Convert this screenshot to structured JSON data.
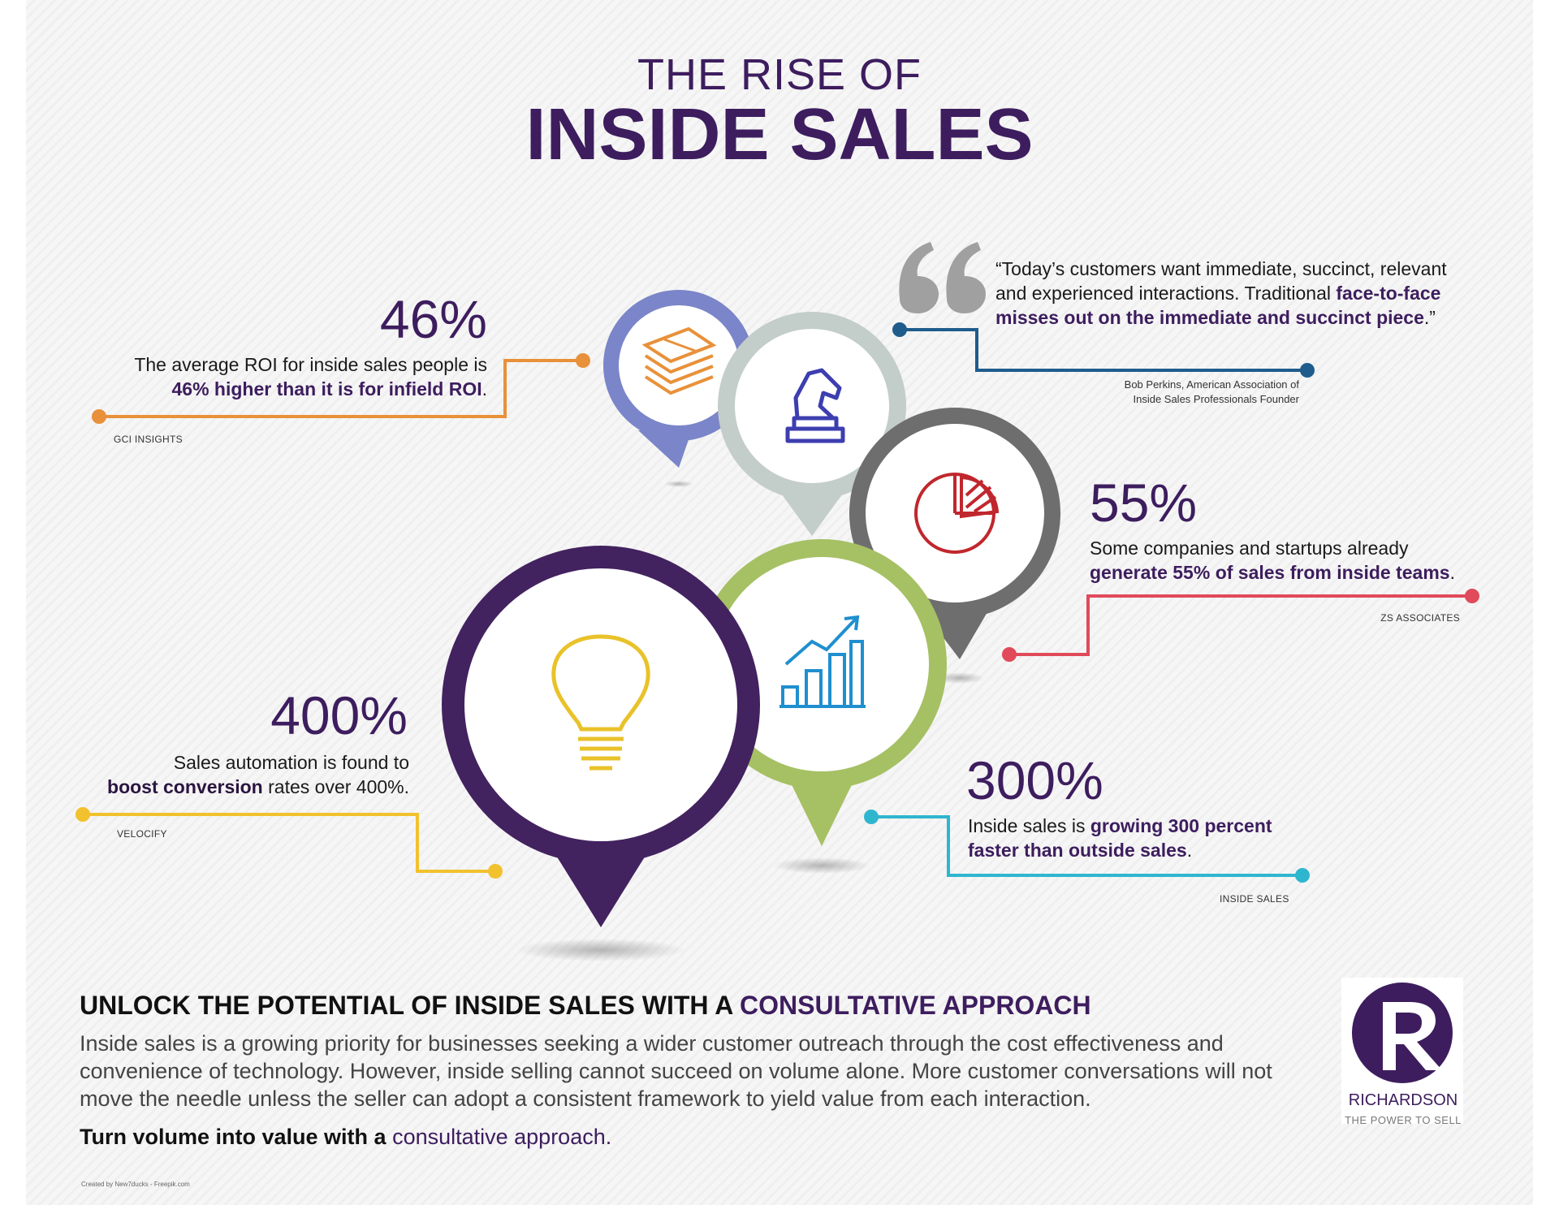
{
  "title": {
    "line1": "THE RISE OF",
    "line2": "INSIDE SALES"
  },
  "stats": [
    {
      "id": "roi",
      "number": "46%",
      "text_plain": "The average ROI for inside sales people is",
      "text_bold": "46% higher than it is for infield ROI",
      "text_end": ".",
      "source": "GCI INSIGHTS",
      "color": "#e8913a"
    },
    {
      "id": "companies",
      "number": "55%",
      "text_plain": "Some companies and startups already",
      "text_bold": "generate 55% of sales from inside teams",
      "text_end": ".",
      "source": "ZS ASSOCIATES",
      "color": "#e04a5a"
    },
    {
      "id": "automation",
      "number": "400%",
      "text_plain_1": "Sales automation is found to",
      "text_bold": "boost conversion",
      "text_plain_2": "rates over 400%.",
      "source": "VELOCIFY",
      "color": "#f2c12e"
    },
    {
      "id": "growth",
      "number": "300%",
      "text_plain": "Inside sales is",
      "text_bold": "growing 300 percent faster than outside sales",
      "text_end": ".",
      "source": "INSIDE SALES",
      "color": "#2fb6cf"
    }
  ],
  "quote": {
    "text_plain": "“Today’s customers want immediate, succinct, relevant and experienced interactions. Traditional",
    "text_bold": "face-to-face misses out on the immediate and succinct piece",
    "text_end": ".”",
    "attribution_line1": "Bob Perkins, American Association of",
    "attribution_line2": "Inside Sales Professionals Founder",
    "color": "#1f5c8c"
  },
  "bottom": {
    "heading_plain": "UNLOCK THE POTENTIAL OF INSIDE SALES WITH A",
    "heading_highlight": "CONSULTATIVE APPROACH",
    "body": "Inside sales is a growing priority for businesses seeking a wider customer outreach through the cost effectiveness and convenience of technology. However, inside selling cannot succeed on volume alone. More customer conversations will not move the needle unless the seller can adopt a consistent framework to yield value from each interaction.",
    "cta_plain": "Turn volume into value with a",
    "cta_highlight": "consultative approach."
  },
  "logo": {
    "letter": "R",
    "name": "RICHARDSON",
    "tagline": "THE POWER TO SELL"
  },
  "credit": "Created by New7ducks - Freepik.com",
  "icons": [
    "money-stack-icon",
    "chess-knight-icon",
    "pie-chart-icon",
    "growth-chart-icon",
    "lightbulb-icon",
    "quote-mark-icon"
  ],
  "colors": {
    "brand_purple": "#3d1d5e",
    "pin_lavender": "#7b85c9",
    "pin_gray_green": "#c3cdc9",
    "pin_dark_gray": "#6e6e6e",
    "pin_green": "#a6c064",
    "pin_purple": "#42225f"
  }
}
